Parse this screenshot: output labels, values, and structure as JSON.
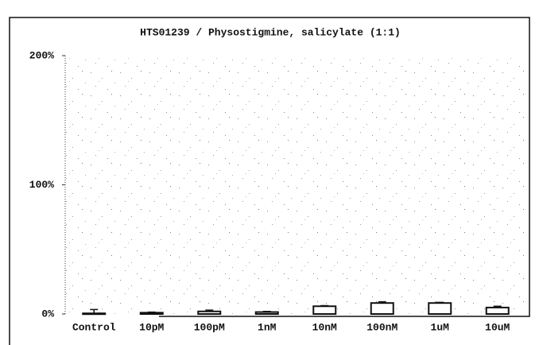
{
  "chart_data": {
    "type": "bar",
    "title": "HTS01239 / Physostigmine, salicylate (1:1)",
    "categories": [
      "Control",
      "10pM",
      "100pM",
      "1nM",
      "10nM",
      "100nM",
      "1uM",
      "10uM"
    ],
    "values": [
      0.5,
      1,
      2,
      1.5,
      6,
      8.5,
      8.5,
      5
    ],
    "errors": [
      3,
      0.5,
      1,
      0.5,
      0.5,
      1,
      0.5,
      1
    ],
    "color": "#ffffff",
    "ylim": [
      0,
      200
    ],
    "yticks": [
      {
        "value": 0,
        "label": "0%"
      },
      {
        "value": 100,
        "label": "100%"
      },
      {
        "value": 200,
        "label": "200%"
      }
    ],
    "grid": false
  }
}
